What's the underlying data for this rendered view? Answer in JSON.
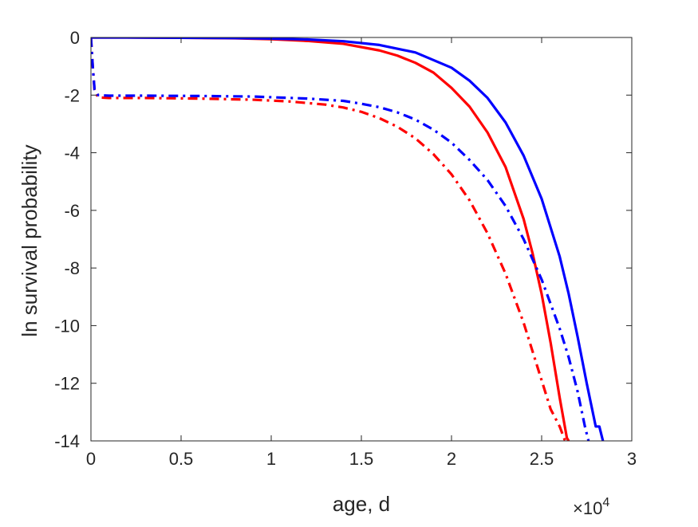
{
  "chart_data": {
    "type": "line",
    "title": "",
    "xlabel": "age, d",
    "ylabel": "ln survival probability",
    "x_multiplier_label": "×10",
    "x_multiplier_exponent": "4",
    "xlim": [
      0,
      30000
    ],
    "ylim": [
      -14,
      0
    ],
    "xticks": [
      0,
      5000,
      10000,
      15000,
      20000,
      25000,
      30000
    ],
    "xtick_labels": [
      "0",
      "0.5",
      "1",
      "1.5",
      "2",
      "2.5",
      "3"
    ],
    "yticks": [
      0,
      -2,
      -4,
      -6,
      -8,
      -10,
      -12,
      -14
    ],
    "ytick_labels": [
      "0",
      "-2",
      "-4",
      "-6",
      "-8",
      "-10",
      "-12",
      "-14"
    ],
    "grid": false,
    "box": true,
    "series": [
      {
        "color": "#ff0000",
        "style": "solid",
        "x": [
          0,
          2000,
          5000,
          8000,
          10000,
          12000,
          14000,
          16000,
          17000,
          18000,
          19000,
          20000,
          21000,
          22000,
          23000,
          24000,
          24500,
          25000,
          25500,
          26000,
          26400,
          26500
        ],
        "y": [
          0,
          0,
          -0.01,
          -0.03,
          -0.06,
          -0.12,
          -0.22,
          -0.45,
          -0.63,
          -0.88,
          -1.22,
          -1.75,
          -2.4,
          -3.3,
          -4.5,
          -6.3,
          -7.5,
          -8.9,
          -10.6,
          -12.5,
          -13.9,
          -14
        ]
      },
      {
        "color": "#0000ff",
        "style": "solid",
        "x": [
          0,
          2000,
          5000,
          8000,
          10000,
          12000,
          14000,
          16000,
          18000,
          20000,
          21000,
          22000,
          23000,
          24000,
          25000,
          26000,
          26500,
          27000,
          27500,
          28000,
          28200,
          28400
        ],
        "y": [
          0,
          0,
          -0.01,
          -0.02,
          -0.04,
          -0.07,
          -0.13,
          -0.26,
          -0.52,
          -1.05,
          -1.5,
          -2.1,
          -2.95,
          -4.1,
          -5.6,
          -7.6,
          -8.9,
          -10.4,
          -12.0,
          -13.5,
          -13.5,
          -14
        ]
      },
      {
        "color": "#ff0000",
        "style": "dashdot",
        "x": [
          0,
          100,
          200,
          400,
          1000,
          3000,
          6000,
          9000,
          11000,
          13000,
          14000,
          15000,
          16000,
          17000,
          18000,
          19000,
          20000,
          21000,
          22000,
          23000,
          24000,
          25000,
          25500,
          26000,
          26300
        ],
        "y": [
          0,
          -1.0,
          -1.85,
          -2.08,
          -2.1,
          -2.1,
          -2.12,
          -2.16,
          -2.22,
          -2.33,
          -2.43,
          -2.58,
          -2.8,
          -3.1,
          -3.5,
          -4.05,
          -4.75,
          -5.65,
          -6.8,
          -8.2,
          -9.9,
          -11.9,
          -12.9,
          -13.5,
          -14
        ]
      },
      {
        "color": "#0000ff",
        "style": "dashdot",
        "x": [
          0,
          100,
          200,
          400,
          1000,
          3000,
          6000,
          9000,
          12000,
          14000,
          15000,
          16000,
          17000,
          18000,
          19000,
          20000,
          21000,
          22000,
          23000,
          24000,
          25000,
          26000,
          26500,
          27000,
          27400,
          27600
        ],
        "y": [
          0,
          -1.0,
          -1.8,
          -2.0,
          -2.02,
          -2.02,
          -2.03,
          -2.05,
          -2.12,
          -2.2,
          -2.3,
          -2.42,
          -2.6,
          -2.85,
          -3.2,
          -3.65,
          -4.25,
          -4.95,
          -5.85,
          -7.0,
          -8.4,
          -10.1,
          -11.1,
          -12.3,
          -13.5,
          -14
        ]
      }
    ]
  }
}
